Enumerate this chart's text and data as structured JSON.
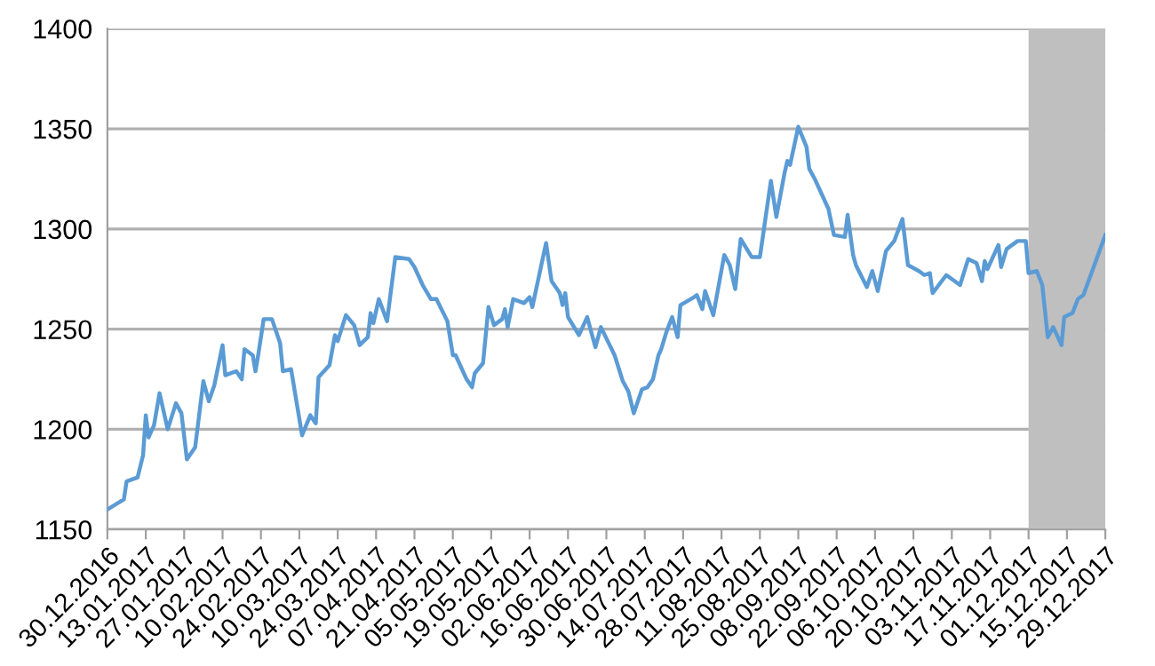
{
  "chart_data": {
    "type": "line",
    "x": [
      "2016-12-30",
      "2017-01-05",
      "2017-01-06",
      "2017-01-10",
      "2017-01-12",
      "2017-01-13",
      "2017-01-14",
      "2017-01-16",
      "2017-01-18",
      "2017-01-21",
      "2017-01-24",
      "2017-01-26",
      "2017-01-28",
      "2017-01-31",
      "2017-02-03",
      "2017-02-05",
      "2017-02-07",
      "2017-02-10",
      "2017-02-11",
      "2017-02-15",
      "2017-02-17",
      "2017-02-18",
      "2017-02-21",
      "2017-02-22",
      "2017-02-23",
      "2017-02-25",
      "2017-02-28",
      "2017-03-03",
      "2017-03-04",
      "2017-03-07",
      "2017-03-11",
      "2017-03-14",
      "2017-03-16",
      "2017-03-17",
      "2017-03-21",
      "2017-03-23",
      "2017-03-24",
      "2017-03-27",
      "2017-03-30",
      "2017-04-01",
      "2017-04-04",
      "2017-04-05",
      "2017-04-06",
      "2017-04-08",
      "2017-04-11",
      "2017-04-14",
      "2017-04-19",
      "2017-04-21",
      "2017-04-24",
      "2017-04-27",
      "2017-04-29",
      "2017-05-03",
      "2017-05-05",
      "2017-05-06",
      "2017-05-10",
      "2017-05-12",
      "2017-05-13",
      "2017-05-16",
      "2017-05-18",
      "2017-05-20",
      "2017-05-23",
      "2017-05-24",
      "2017-05-25",
      "2017-05-27",
      "2017-05-31",
      "2017-06-02",
      "2017-06-03",
      "2017-06-08",
      "2017-06-10",
      "2017-06-13",
      "2017-06-14",
      "2017-06-15",
      "2017-06-16",
      "2017-06-20",
      "2017-06-23",
      "2017-06-26",
      "2017-06-28",
      "2017-07-03",
      "2017-07-06",
      "2017-07-08",
      "2017-07-10",
      "2017-07-13",
      "2017-07-15",
      "2017-07-17",
      "2017-07-19",
      "2017-07-20",
      "2017-07-22",
      "2017-07-24",
      "2017-07-26",
      "2017-07-27",
      "2017-08-01",
      "2017-08-02",
      "2017-08-04",
      "2017-08-05",
      "2017-08-08",
      "2017-08-12",
      "2017-08-14",
      "2017-08-16",
      "2017-08-18",
      "2017-08-22",
      "2017-08-25",
      "2017-08-29",
      "2017-08-31",
      "2017-09-03",
      "2017-09-04",
      "2017-09-05",
      "2017-09-08",
      "2017-09-11",
      "2017-09-12",
      "2017-09-14",
      "2017-09-17",
      "2017-09-19",
      "2017-09-21",
      "2017-09-25",
      "2017-09-26",
      "2017-09-28",
      "2017-09-29",
      "2017-10-03",
      "2017-10-05",
      "2017-10-07",
      "2017-10-10",
      "2017-10-13",
      "2017-10-16",
      "2017-10-18",
      "2017-10-22",
      "2017-10-24",
      "2017-10-26",
      "2017-10-27",
      "2017-11-01",
      "2017-11-06",
      "2017-11-09",
      "2017-11-12",
      "2017-11-14",
      "2017-11-15",
      "2017-11-16",
      "2017-11-20",
      "2017-11-21",
      "2017-11-23",
      "2017-11-27",
      "2017-11-30",
      "2017-12-01",
      "2017-12-04",
      "2017-12-06",
      "2017-12-08",
      "2017-12-10",
      "2017-12-13",
      "2017-12-14",
      "2017-12-17",
      "2017-12-19",
      "2017-12-21",
      "2017-12-25",
      "2017-12-29"
    ],
    "series": [
      {
        "color": "#5b9bd5",
        "values": [
          1160,
          1165,
          1174,
          1176,
          1187,
          1207,
          1196,
          1202,
          1218,
          1200,
          1213,
          1208,
          1185,
          1191,
          1224,
          1214,
          1222,
          1242,
          1227,
          1229,
          1225,
          1240,
          1237,
          1229,
          1237,
          1255,
          1255,
          1243,
          1229,
          1230,
          1197,
          1207,
          1203,
          1226,
          1232,
          1247,
          1244,
          1257,
          1252,
          1242,
          1246,
          1258,
          1253,
          1265,
          1254,
          1286,
          1285,
          1281,
          1272,
          1265,
          1265,
          1254,
          1237,
          1237,
          1225,
          1221,
          1228,
          1233,
          1261,
          1252,
          1255,
          1260,
          1251,
          1265,
          1263,
          1266,
          1261,
          1293,
          1274,
          1268,
          1262,
          1268,
          1256,
          1247,
          1256,
          1241,
          1251,
          1237,
          1224,
          1219,
          1208,
          1220,
          1221,
          1225,
          1237,
          1240,
          1249,
          1256,
          1246,
          1262,
          1266,
          1267,
          1260,
          1269,
          1257,
          1287,
          1282,
          1270,
          1295,
          1286,
          1286,
          1324,
          1306,
          1328,
          1334,
          1332,
          1351,
          1341,
          1330,
          1325,
          1316,
          1310,
          1297,
          1296,
          1307,
          1287,
          1282,
          1271,
          1279,
          1269,
          1289,
          1294,
          1305,
          1282,
          1279,
          1277,
          1278,
          1268,
          1277,
          1272,
          1285,
          1283,
          1274,
          1284,
          1280,
          1292,
          1281,
          1290,
          1294,
          1294,
          1278,
          1279,
          1272,
          1246,
          1251,
          1242,
          1256,
          1258,
          1265,
          1267,
          1282,
          1297
        ]
      }
    ],
    "xlim": [
      "2016-12-30",
      "2017-12-29"
    ],
    "xticks": [
      {
        "value": "2016-12-30",
        "label": "30.12.2016"
      },
      {
        "value": "2017-01-13",
        "label": "13.01.2017"
      },
      {
        "value": "2017-01-27",
        "label": "27.01.2017"
      },
      {
        "value": "2017-02-10",
        "label": "10.02.2017"
      },
      {
        "value": "2017-02-24",
        "label": "24.02.2017"
      },
      {
        "value": "2017-03-10",
        "label": "10.03.2017"
      },
      {
        "value": "2017-03-24",
        "label": "24.03.2017"
      },
      {
        "value": "2017-04-07",
        "label": "07.04.2017"
      },
      {
        "value": "2017-04-21",
        "label": "21.04.2017"
      },
      {
        "value": "2017-05-05",
        "label": "05.05.2017"
      },
      {
        "value": "2017-05-19",
        "label": "19.05.2017"
      },
      {
        "value": "2017-06-02",
        "label": "02.06.2017"
      },
      {
        "value": "2017-06-16",
        "label": "16.06.2017"
      },
      {
        "value": "2017-06-30",
        "label": "30.06.2017"
      },
      {
        "value": "2017-07-14",
        "label": "14.07.2017"
      },
      {
        "value": "2017-07-28",
        "label": "28.07.2017"
      },
      {
        "value": "2017-08-11",
        "label": "11.08.2017"
      },
      {
        "value": "2017-08-25",
        "label": "25.08.2017"
      },
      {
        "value": "2017-09-08",
        "label": "08.09.2017"
      },
      {
        "value": "2017-09-22",
        "label": "22.09.2017"
      },
      {
        "value": "2017-10-06",
        "label": "06.10.2017"
      },
      {
        "value": "2017-10-20",
        "label": "20.10.2017"
      },
      {
        "value": "2017-11-03",
        "label": "03.11.2017"
      },
      {
        "value": "2017-11-17",
        "label": "17.11.2017"
      },
      {
        "value": "2017-12-01",
        "label": "01.12.2017"
      },
      {
        "value": "2017-12-15",
        "label": "15.12.2017"
      },
      {
        "value": "2017-12-29",
        "label": "29.12.2017"
      }
    ],
    "ylim": [
      1150,
      1400
    ],
    "yticks": [
      1150,
      1200,
      1250,
      1300,
      1350,
      1400
    ],
    "grid": "y",
    "bands": [
      {
        "axis": "x",
        "from": "2017-12-01",
        "to": "2017-12-29",
        "color": "#bfbfbf"
      }
    ]
  }
}
